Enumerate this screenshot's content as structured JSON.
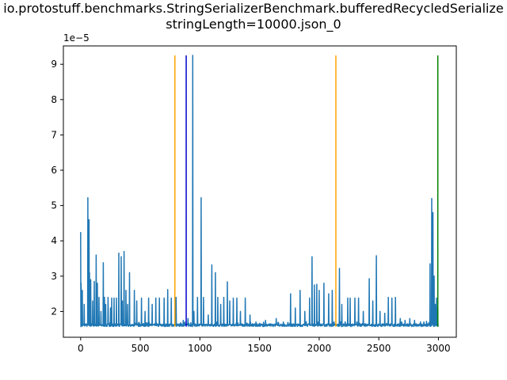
{
  "chart_data": {
    "type": "line",
    "title_line1": "io.protostuff.benchmarks.StringSerializerBenchmark.bufferedRecycledSerialize",
    "title_line2": "stringLength=10000.json_0",
    "offset_label": "1e−5",
    "xlim": [
      -145,
      3150
    ],
    "ylim": [
      1.27,
      9.52
    ],
    "x_ticks": [
      0,
      500,
      1000,
      1500,
      2000,
      2500,
      3000
    ],
    "x_tick_labels": [
      "0",
      "500",
      "1000",
      "1500",
      "2000",
      "2500",
      "3000"
    ],
    "y_ticks": [
      2,
      3,
      4,
      5,
      6,
      7,
      8,
      9
    ],
    "y_tick_labels": [
      "2",
      "3",
      "4",
      "5",
      "6",
      "7",
      "8",
      "9"
    ],
    "grid": false,
    "series": [
      {
        "color": "#1f77b4",
        "baseline": 1.57,
        "n_points": 3000,
        "spikes": [
          [
            0,
            4.25
          ],
          [
            5,
            2.8
          ],
          [
            15,
            2.6
          ],
          [
            30,
            2.2
          ],
          [
            60,
            5.22
          ],
          [
            70,
            4.6
          ],
          [
            75,
            3.1
          ],
          [
            85,
            2.9
          ],
          [
            100,
            2.3
          ],
          [
            115,
            2.85
          ],
          [
            130,
            3.6
          ],
          [
            140,
            2.8
          ],
          [
            155,
            2.4
          ],
          [
            170,
            2.0
          ],
          [
            190,
            3.38
          ],
          [
            200,
            2.4
          ],
          [
            210,
            2.2
          ],
          [
            230,
            2.4
          ],
          [
            250,
            2.1
          ],
          [
            260,
            2.38
          ],
          [
            280,
            2.38
          ],
          [
            300,
            2.38
          ],
          [
            320,
            3.65
          ],
          [
            340,
            3.55
          ],
          [
            350,
            2.3
          ],
          [
            365,
            3.7
          ],
          [
            380,
            2.6
          ],
          [
            395,
            2.2
          ],
          [
            410,
            3.1
          ],
          [
            450,
            2.6
          ],
          [
            470,
            2.3
          ],
          [
            510,
            2.38
          ],
          [
            540,
            2.0
          ],
          [
            570,
            2.38
          ],
          [
            600,
            2.2
          ],
          [
            630,
            2.38
          ],
          [
            660,
            2.38
          ],
          [
            700,
            2.38
          ],
          [
            730,
            2.62
          ],
          [
            760,
            2.38
          ],
          [
            800,
            2.4
          ],
          [
            860,
            1.75
          ],
          [
            900,
            1.8
          ],
          [
            940,
            9.25
          ],
          [
            950,
            2.0
          ],
          [
            980,
            2.4
          ],
          [
            1010,
            5.22
          ],
          [
            1030,
            2.4
          ],
          [
            1070,
            1.9
          ],
          [
            1100,
            3.32
          ],
          [
            1130,
            3.1
          ],
          [
            1150,
            2.4
          ],
          [
            1175,
            2.2
          ],
          [
            1200,
            2.4
          ],
          [
            1230,
            2.84
          ],
          [
            1250,
            2.3
          ],
          [
            1280,
            2.38
          ],
          [
            1310,
            2.38
          ],
          [
            1340,
            2.0
          ],
          [
            1380,
            2.38
          ],
          [
            1420,
            1.9
          ],
          [
            1470,
            1.7
          ],
          [
            1550,
            1.75
          ],
          [
            1640,
            1.8
          ],
          [
            1700,
            1.7
          ],
          [
            1760,
            2.5
          ],
          [
            1800,
            2.1
          ],
          [
            1840,
            2.6
          ],
          [
            1880,
            2.0
          ],
          [
            1920,
            2.38
          ],
          [
            1940,
            3.55
          ],
          [
            1960,
            2.75
          ],
          [
            1980,
            2.77
          ],
          [
            2000,
            2.6
          ],
          [
            2040,
            2.8
          ],
          [
            2080,
            2.5
          ],
          [
            2110,
            2.6
          ],
          [
            2170,
            3.22
          ],
          [
            2190,
            2.2
          ],
          [
            2240,
            2.38
          ],
          [
            2260,
            2.38
          ],
          [
            2300,
            2.38
          ],
          [
            2330,
            2.38
          ],
          [
            2370,
            2.0
          ],
          [
            2420,
            2.93
          ],
          [
            2450,
            2.3
          ],
          [
            2480,
            3.58
          ],
          [
            2510,
            2.0
          ],
          [
            2550,
            1.95
          ],
          [
            2580,
            2.4
          ],
          [
            2610,
            2.38
          ],
          [
            2640,
            2.4
          ],
          [
            2680,
            1.8
          ],
          [
            2720,
            1.75
          ],
          [
            2760,
            1.8
          ],
          [
            2800,
            1.75
          ],
          [
            2850,
            1.7
          ],
          [
            2900,
            1.72
          ],
          [
            2930,
            3.35
          ],
          [
            2945,
            5.2
          ],
          [
            2955,
            4.8
          ],
          [
            2965,
            3.0
          ],
          [
            2975,
            2.2
          ],
          [
            2985,
            2.38
          ],
          [
            2995,
            2.1
          ]
        ]
      }
    ],
    "vertical_lines": [
      {
        "x": 790,
        "color": "#ffa500"
      },
      {
        "x": 885,
        "color": "#0000cd"
      },
      {
        "x": 2140,
        "color": "#ffa500"
      },
      {
        "x": 2995,
        "color": "#008000"
      }
    ],
    "vline_range": [
      1.57,
      9.25
    ]
  }
}
